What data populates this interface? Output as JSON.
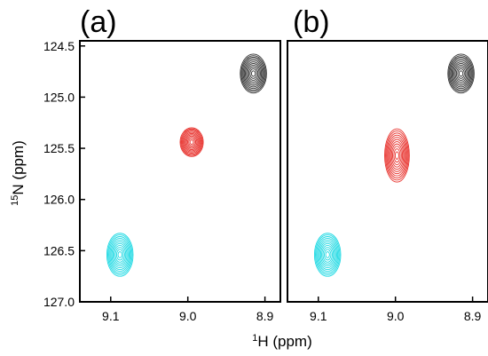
{
  "chart_data": [
    {
      "type": "contour",
      "panel_label": "(a)",
      "x_axis": {
        "label_sup": "1",
        "label_main": "H (ppm)",
        "range": [
          9.14,
          8.88
        ],
        "ticks": [
          9.1,
          9.0,
          8.9
        ],
        "tick_labels": [
          "9.1",
          "9.0",
          "8.9"
        ]
      },
      "y_axis": {
        "label_sup": "15",
        "label_main": "N (ppm)",
        "range": [
          124.45,
          127.0
        ],
        "ticks": [
          124.5,
          125.0,
          125.5,
          126.0,
          126.5,
          127.0
        ],
        "tick_labels": [
          "124.5",
          "125.0",
          "125.5",
          "126.0",
          "126.5",
          "127.0"
        ]
      },
      "grid": false,
      "peaks": [
        {
          "h": 8.915,
          "n": 124.77,
          "color": "#303030",
          "rh": 0.017,
          "rn": 0.19
        },
        {
          "h": 8.995,
          "n": 125.44,
          "color": "#e8332e",
          "rh": 0.015,
          "rn": 0.14
        },
        {
          "h": 9.088,
          "n": 126.54,
          "color": "#1ed9e3",
          "rh": 0.017,
          "rn": 0.21
        }
      ]
    },
    {
      "type": "contour",
      "panel_label": "(b)",
      "x_axis": {
        "label_sup": "1",
        "label_main": "H (ppm)",
        "range": [
          9.14,
          8.88
        ],
        "ticks": [
          9.1,
          9.0,
          8.9
        ],
        "tick_labels": [
          "9.1",
          "9.0",
          "8.9"
        ]
      },
      "y_axis": {
        "range": [
          124.45,
          127.0
        ]
      },
      "grid": false,
      "peaks": [
        {
          "h": 8.915,
          "n": 124.77,
          "color": "#303030",
          "rh": 0.017,
          "rn": 0.19
        },
        {
          "h": 8.998,
          "n": 125.57,
          "color": "#e8332e",
          "rh": 0.016,
          "rn": 0.26
        },
        {
          "h": 9.088,
          "n": 126.54,
          "color": "#1ed9e3",
          "rh": 0.017,
          "rn": 0.21
        }
      ]
    }
  ]
}
